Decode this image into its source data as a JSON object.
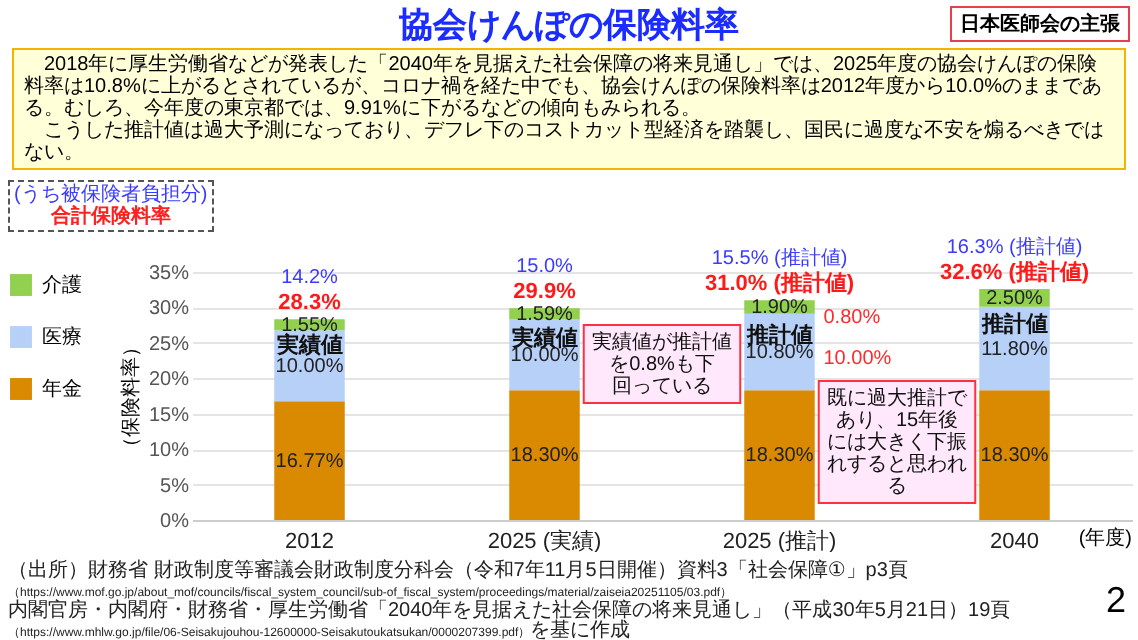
{
  "chart_data": {
    "type": "bar",
    "title": "協会けんぽの保険料率",
    "ylabel": "（保険料率）",
    "categories": [
      "2012",
      "2025 (実績)",
      "2025 (推計)",
      "2040"
    ],
    "stacked": true,
    "legend": "left",
    "grid": "y",
    "ylim": [
      0,
      35
    ],
    "yticks": [
      {
        "value": 0,
        "label": "0%"
      },
      {
        "value": 5,
        "label": "5%"
      },
      {
        "value": 10,
        "label": "10%"
      },
      {
        "value": 15,
        "label": "15%"
      },
      {
        "value": 20,
        "label": "20%"
      },
      {
        "value": 25,
        "label": "25%"
      },
      {
        "value": 30,
        "label": "30%"
      },
      {
        "value": 35,
        "label": "35%"
      }
    ],
    "series": [
      {
        "name": "年金",
        "color": "#d98a00",
        "values": [
          16.77,
          18.3,
          18.3,
          18.3
        ],
        "value_labels": [
          "16.77%",
          "18.30%",
          "18.30%",
          "18.30%"
        ]
      },
      {
        "name": "医療",
        "color": "#b7d0f7",
        "values": [
          10.0,
          10.0,
          10.8,
          11.8
        ],
        "value_labels": [
          "10.00%",
          "10.00%",
          "10.80%",
          "11.80%"
        ]
      },
      {
        "name": "介護",
        "color": "#92d050",
        "values": [
          1.55,
          1.59,
          1.9,
          2.5
        ],
        "value_labels": [
          "1.55%",
          "1.59%",
          "1.90%",
          "2.50%"
        ]
      }
    ],
    "totals": [
      "28.3%",
      "29.9%",
      "31.0% (推計値)",
      "32.6% (推計値)"
    ],
    "annotations": [
      "日本医師会の主張",
      "2018年に厚生労働省などが発表した「2040年を見据えた社会保障の将来見通し」では、2025年度の協会けんぽの保険料率は10.8%に上がるとされているが、コロナ禍を経た中でも、協会けんぽの保険料率は2012年度から10.0%のままである。むしろ、今年度の東京都では、9.91%に下がるなどの傾向もみられる。",
      "こうした推計値は過大予測になっており、デフレ下のコストカット型経済を踏襲し、国民に過度な不安を煽るべきではない。",
      "(うち被保険者負担分)",
      "合計保険料率",
      "14.2%",
      "15.0%",
      "15.5% (推計値)",
      "16.3% (推計値)",
      "実績値",
      "実績値",
      "推計値",
      "推計値",
      "実績値が推計値を0.8%も下回っている",
      "0.80%",
      "10.00%",
      "既に過大推計であり、15年後には大きく下振れすると思われる",
      "(年度)",
      "2",
      "（出所）財務省 財政制度等審議会財政制度分科会（令和7年11月5日開催）資料3「社会保障①」p3頁（https://www.mof.go.jp/about_mof/councils/fiscal_system_council/sub-of_fiscal_system/proceedings/material/zaiseia20251105/03.pdf）",
      "内閣官房・内閣府・財務省・厚生労働省「2040年を見据えた社会保障の将来見通し」（平成30年5月21日）19頁（https://www.mhlw.go.jp/file/06-Seisakujouhou-12600000-Seisakutoukatsukan/0000207399.pdf）を基に作成"
    ]
  }
}
